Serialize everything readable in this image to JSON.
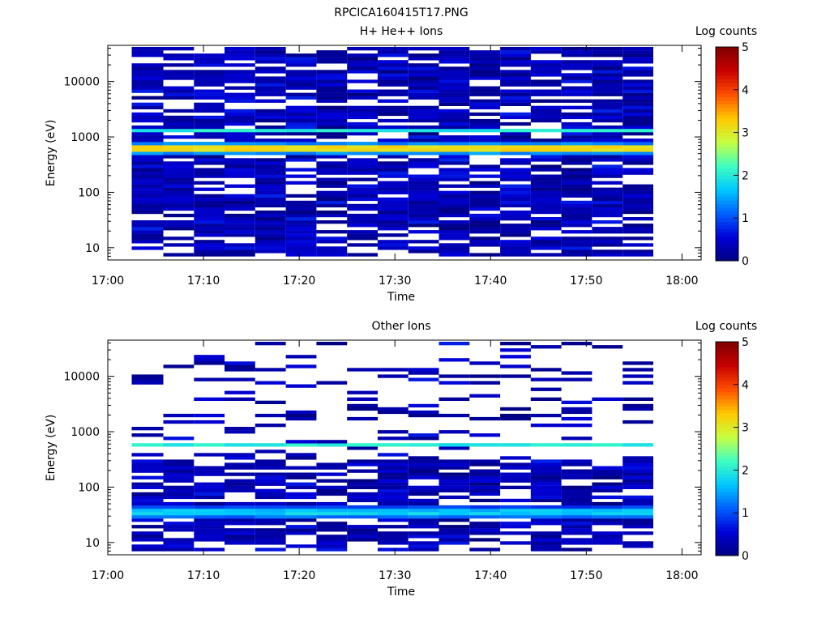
{
  "figure": {
    "title": "RPCICA160415T17.PNG"
  },
  "colormap": [
    "#000080",
    "#0000d8",
    "#0060ff",
    "#00c8ff",
    "#40ffc0",
    "#c8ff40",
    "#ffc800",
    "#ff5000",
    "#c80000",
    "#800000"
  ],
  "chart_data": [
    {
      "type": "heatmap",
      "title": "H+ He++ Ions",
      "xlabel": "Time",
      "ylabel": "Energy (eV)",
      "colorbar_label": "Log counts",
      "x_ticks": [
        "17:00",
        "17:10",
        "17:20",
        "17:30",
        "17:40",
        "17:50",
        "18:00"
      ],
      "x_range_min": [
        0,
        62
      ],
      "y_scale": "log",
      "y_range": [
        6,
        45000
      ],
      "y_ticks": [
        10,
        100,
        1000,
        10000
      ],
      "y_tick_labels": [
        "10",
        "100",
        "1000",
        "10000"
      ],
      "colorbar_range": [
        0,
        5
      ],
      "colorbar_ticks": [
        "0",
        "1",
        "2",
        "3",
        "4",
        "5"
      ],
      "time_bins_min": [
        2.5,
        5.8,
        9.0,
        12.2,
        15.4,
        18.6,
        21.8,
        25.0,
        28.2,
        31.4,
        34.6,
        37.8,
        41.0,
        44.2,
        47.4,
        50.6,
        53.8,
        57.0
      ],
      "energy_peak_eV": 620,
      "peak_log_counts": 3.5,
      "secondary_band_eV": 1300,
      "secondary_band_log_counts": 2.0
    },
    {
      "type": "heatmap",
      "title": "Other Ions",
      "xlabel": "Time",
      "ylabel": "Energy (eV)",
      "colorbar_label": "Log counts",
      "x_ticks": [
        "17:00",
        "17:10",
        "17:20",
        "17:30",
        "17:40",
        "17:50",
        "18:00"
      ],
      "x_range_min": [
        0,
        62
      ],
      "y_scale": "log",
      "y_range": [
        6,
        45000
      ],
      "y_ticks": [
        10,
        100,
        1000,
        10000
      ],
      "y_tick_labels": [
        "10",
        "100",
        "1000",
        "10000"
      ],
      "colorbar_range": [
        0,
        5
      ],
      "colorbar_ticks": [
        "0",
        "1",
        "2",
        "3",
        "4",
        "5"
      ],
      "time_bins_min": [
        2.5,
        5.8,
        9.0,
        12.2,
        15.4,
        18.6,
        21.8,
        25.0,
        28.2,
        31.4,
        34.6,
        37.8,
        41.0,
        44.2,
        47.4,
        50.6,
        53.8,
        57.0
      ],
      "energy_peak_eV": 580,
      "peak_log_counts": 2.0,
      "low_band_eV": 35,
      "low_band_log_counts": 1.8
    }
  ]
}
